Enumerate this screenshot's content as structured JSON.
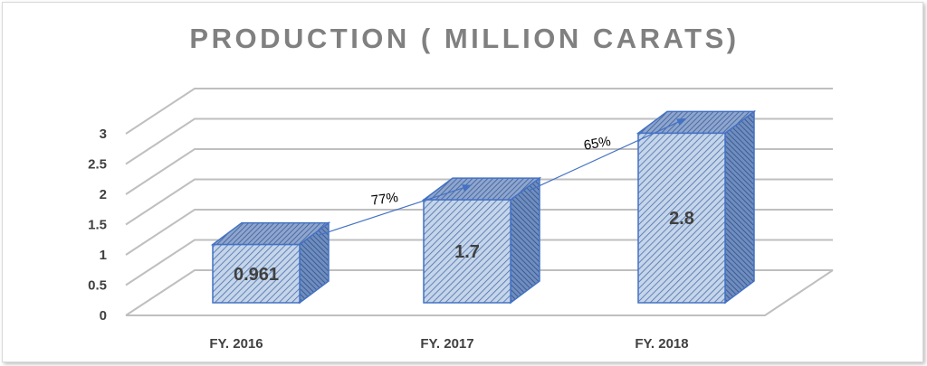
{
  "chart_data": {
    "type": "bar",
    "title": "PRODUCTION ( MILLION CARATS)",
    "categories": [
      "FY. 2016",
      "FY. 2017",
      "FY. 2018"
    ],
    "values": [
      0.961,
      1.7,
      2.8
    ],
    "value_labels": [
      "0.961",
      "1.7",
      "2.8"
    ],
    "ylim": [
      0,
      3
    ],
    "yticks": [
      "0",
      "0.5",
      "1",
      "1.5",
      "2",
      "2.5",
      "3"
    ],
    "grid": true,
    "three_d": true,
    "bar_fill": "#c5d5ea",
    "bar_hatch": "#4a6ea9",
    "bar_edge": "#4472c4",
    "annotations": [
      {
        "label": "77%",
        "from": "FY. 2016",
        "to": "FY. 2017"
      },
      {
        "label": "65%",
        "from": "FY. 2017",
        "to": "FY. 2018"
      }
    ]
  }
}
